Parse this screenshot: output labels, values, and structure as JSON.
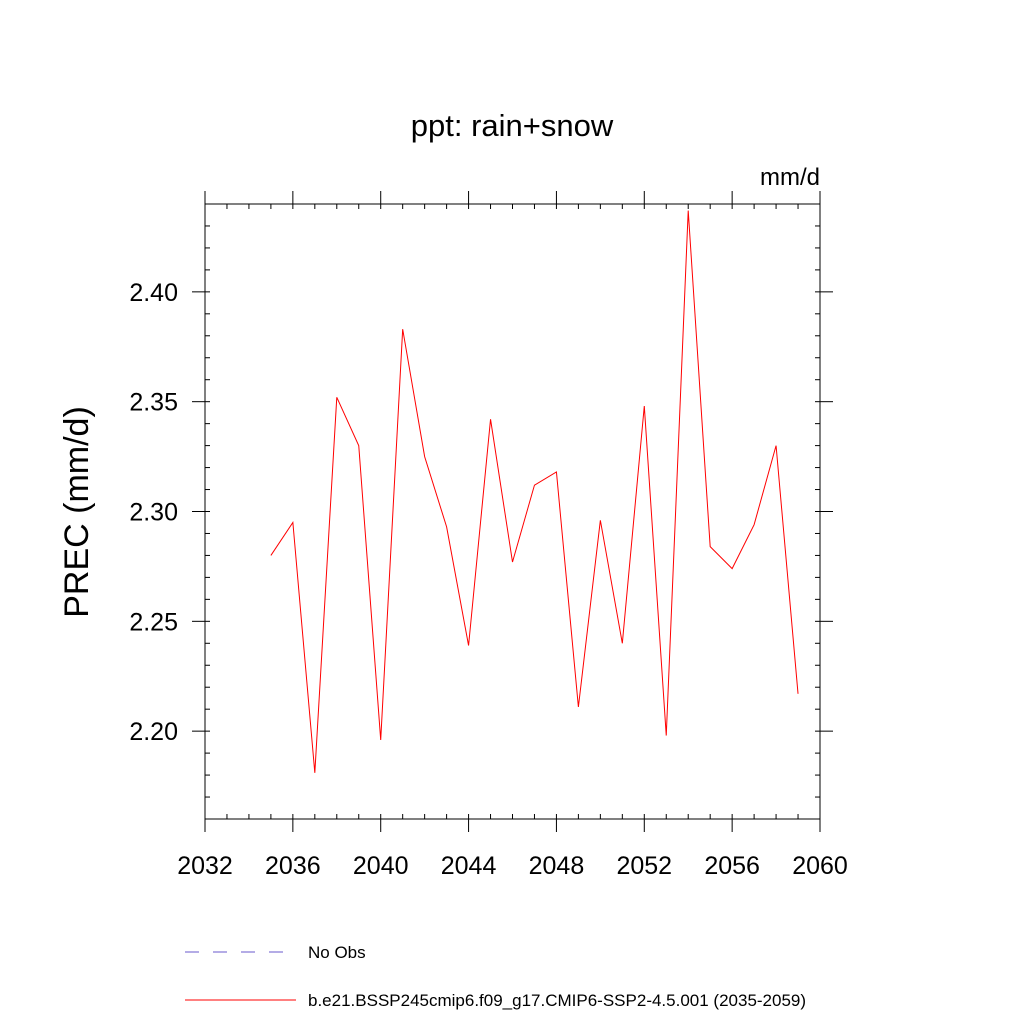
{
  "chart_data": {
    "type": "line",
    "title": "ppt: rain+snow",
    "units": "mm/d",
    "xlabel": "",
    "ylabel": "PREC  (mm/d)",
    "xlim": [
      2032,
      2060
    ],
    "ylim": [
      2.16,
      2.44
    ],
    "xticks": [
      2032,
      2036,
      2040,
      2044,
      2048,
      2052,
      2056,
      2060
    ],
    "xtick_labels": [
      "2032",
      "2036",
      "2040",
      "2044",
      "2048",
      "2052",
      "2056",
      "2060"
    ],
    "yticks": [
      2.2,
      2.25,
      2.3,
      2.35,
      2.4
    ],
    "ytick_labels": [
      "2.20",
      "2.25",
      "2.30",
      "2.35",
      "2.40"
    ],
    "x_minor_step": 1,
    "y_minor_step": 0.01,
    "grid": false,
    "series": [
      {
        "name": "b.e21.BSSP245cmip6.f09_g17.CMIP6-SSP2-4.5.001 (2035-2059)",
        "color": "#ff0000",
        "style": "solid",
        "x": [
          2035,
          2036,
          2037,
          2038,
          2039,
          2040,
          2041,
          2042,
          2043,
          2044,
          2045,
          2046,
          2047,
          2048,
          2049,
          2050,
          2051,
          2052,
          2053,
          2054,
          2055,
          2056,
          2057,
          2058,
          2059
        ],
        "values": [
          2.28,
          2.295,
          2.181,
          2.352,
          2.33,
          2.196,
          2.383,
          2.325,
          2.293,
          2.239,
          2.342,
          2.277,
          2.312,
          2.318,
          2.211,
          2.296,
          2.24,
          2.348,
          2.198,
          2.437,
          2.284,
          2.274,
          2.294,
          2.33,
          2.217
        ]
      }
    ],
    "legend": {
      "placement": "bottom",
      "entries": [
        {
          "label": "No Obs",
          "color": "#6a5acd",
          "style": "dashed"
        },
        {
          "label": "b.e21.BSSP245cmip6.f09_g17.CMIP6-SSP2-4.5.001 (2035-2059)",
          "color": "#ff0000",
          "style": "solid"
        }
      ]
    }
  }
}
